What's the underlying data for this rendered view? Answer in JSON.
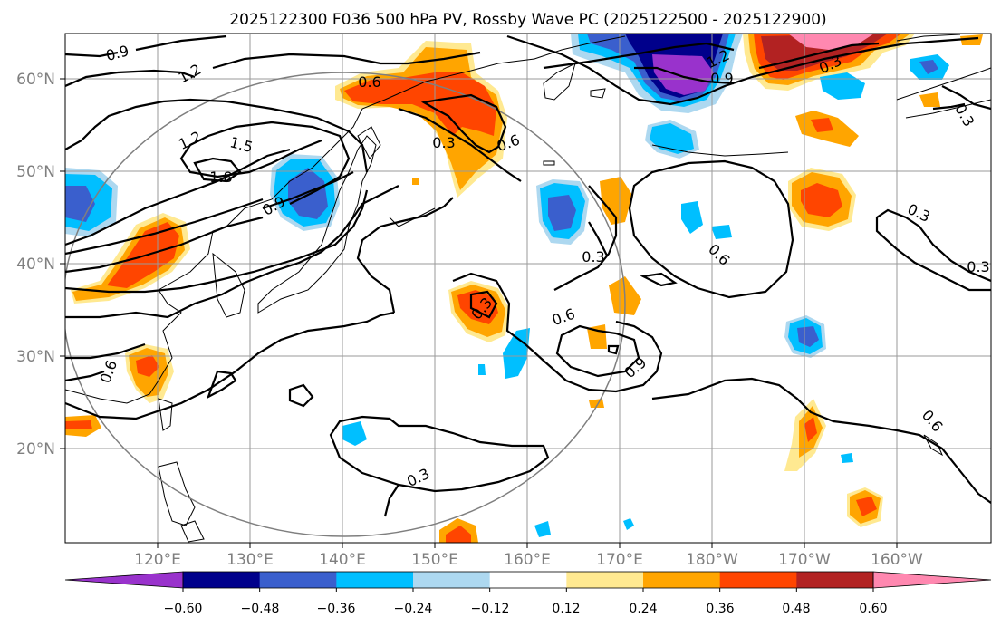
{
  "title": "2025122300 F036 500 hPa PV, Rossby Wave PC (2025122500 - 2025122900)",
  "lon_labels": [
    "120°E",
    "130°E",
    "140°E",
    "150°E",
    "160°E",
    "170°E",
    "180°W",
    "170°W",
    "160°W"
  ],
  "lat_labels": [
    "60°N",
    "50°N",
    "40°N",
    "30°N",
    "20°N"
  ],
  "colorbar": {
    "tick_labels": [
      "−0.60",
      "−0.48",
      "−0.36",
      "−0.24",
      "−0.12",
      "0.12",
      "0.24",
      "0.36",
      "0.48",
      "0.60"
    ],
    "colors": [
      "#9932cc",
      "#00008b",
      "#3a5fcd",
      "#00bfff",
      "#add8f0",
      "#ffffff",
      "#ffe991",
      "#ffa500",
      "#ff4500",
      "#b22222",
      "#ff88b0"
    ]
  },
  "contour_labels": [
    "0.9",
    "1.2",
    "0.6",
    "0.3",
    "0.6",
    "1.2",
    "1.5",
    "1.8",
    "0.9",
    "1.2",
    "0.9",
    "0.3",
    "0.6",
    "0.3",
    "0.3",
    "0.6",
    "0.3",
    "0.6",
    "0.9",
    "0.6",
    "0.3",
    "0.3",
    "0.3"
  ]
}
